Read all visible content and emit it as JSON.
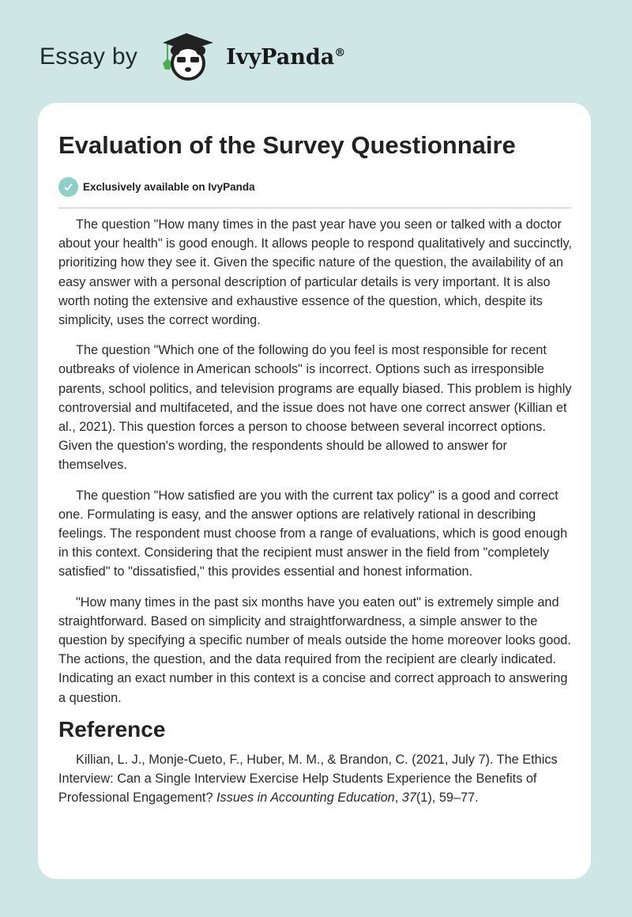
{
  "header": {
    "essay_by": "Essay by",
    "brand": "IvyPanda",
    "registered": "®"
  },
  "article": {
    "title": "Evaluation of the Survey Questionnaire",
    "badge": "Exclusively available on IvyPanda",
    "paragraphs": [
      "The question \"How many times in the past year have you seen or talked with a doctor about your health\" is good enough. It allows people to respond qualitatively and succinctly, prioritizing how they see it. Given the specific nature of the question, the availability of an easy answer with a personal description of particular details is very important. It is also worth noting the extensive and exhaustive essence of the question, which, despite its simplicity, uses the correct wording.",
      "The question \"Which one of the following do you feel is most responsible for recent outbreaks of violence in American schools\" is incorrect. Options such as irresponsible parents, school politics, and television programs are equally biased. This problem is highly controversial and multifaceted, and the issue does not have one correct answer (Killian et al., 2021). This question forces a person to choose between several incorrect options. Given the question's wording, the respondents should be allowed to answer for themselves.",
      "The question \"How satisfied are you with the current tax policy\" is a good and correct one. Formulating is easy, and the answer options are relatively rational in describing feelings. The respondent must choose from a range of evaluations, which is good enough in this context. Considering that the recipient must answer in the field from \"completely satisfied\" to \"dissatisfied,\" this provides essential and honest information.",
      "\"How many times in the past six months have you eaten out\" is extremely simple and straightforward. Based on simplicity and straightforwardness, a simple answer to the question by specifying a specific number of meals outside the home moreover looks good. The actions, the question, and the data required from the recipient are clearly indicated. Indicating an exact number in this context is a concise and correct approach to answering a question."
    ],
    "reference_heading": "Reference",
    "reference": {
      "authors": "Killian, L. J., Monje-Cueto, F., Huber, M. M., & Brandon, C. (2021, July 7). The Ethics Interview: Can a Single Interview Exercise Help Students Experience the Benefits of Professional Engagement? ",
      "journal": "Issues in Accounting Education",
      "sep1": ", ",
      "volume": "37",
      "issue_pages": "(1), 59–77."
    }
  },
  "colors": {
    "background": "#cfe6e7",
    "badge": "#8fcfca",
    "ivy_green": "#4cb050"
  }
}
